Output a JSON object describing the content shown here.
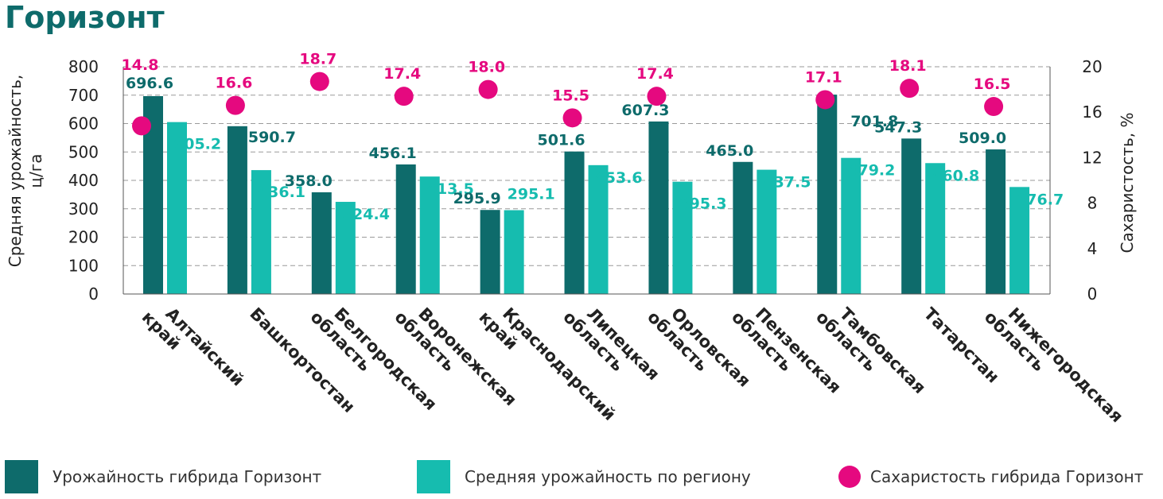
{
  "title": "Горизонт",
  "colors": {
    "hybrid": "#0e6b6b",
    "regional": "#16bcaf",
    "sugar": "#e5097f",
    "title": "#0e6b6b"
  },
  "legend": {
    "hybrid": "Урожайность гибрида Горизонт",
    "regional": "Средняя урожайность по региону",
    "sugar": "Сахаристость гибрида Горизонт"
  },
  "chart_data": {
    "type": "bar",
    "title": "Горизонт",
    "categories": [
      [
        "Алтайский",
        "край"
      ],
      [
        "Башкортостан"
      ],
      [
        "Белгородская",
        "область"
      ],
      [
        "Воронежская",
        "область"
      ],
      [
        "Краснодарский",
        "край"
      ],
      [
        "Липецкая",
        "область"
      ],
      [
        "Орловская",
        "область"
      ],
      [
        "Пензенская",
        "область"
      ],
      [
        "Тамбовская",
        "область"
      ],
      [
        "Татарстан"
      ],
      [
        "Нижегородская",
        "область"
      ]
    ],
    "ylabel_left": [
      "Средняя урожайность,",
      "ц/га"
    ],
    "ylabel_right": "Сахаристость, %",
    "ylim_left": [
      0,
      800
    ],
    "yticks_left": [
      "0",
      "100",
      "200",
      "300",
      "400",
      "500",
      "600",
      "700",
      "800"
    ],
    "ylim_right": [
      0,
      20
    ],
    "yticks_right": [
      "0",
      "4",
      "8",
      "12",
      "16",
      "20"
    ],
    "grid": "dashed horizontal",
    "series": [
      {
        "name": "Урожайность гибрида Горизонт",
        "axis": "left",
        "values": [
          696.6,
          590.7,
          358.0,
          456.1,
          295.9,
          501.6,
          607.3,
          465.0,
          701.8,
          547.3,
          509.0
        ]
      },
      {
        "name": "Средняя урожайность по региону",
        "axis": "left",
        "values": [
          605.2,
          436.1,
          324.4,
          413.5,
          295.1,
          453.6,
          395.3,
          437.5,
          479.2,
          460.8,
          376.7
        ]
      },
      {
        "name": "Сахаристость гибрида Горизонт",
        "axis": "right",
        "type": "scatter",
        "values": [
          14.8,
          16.6,
          18.7,
          17.4,
          18.0,
          15.5,
          17.4,
          17.1,
          18.1,
          16.5
        ]
      }
    ],
    "sugar_category_index": [
      0,
      1,
      2,
      3,
      4,
      5,
      6,
      8,
      9,
      10
    ]
  }
}
